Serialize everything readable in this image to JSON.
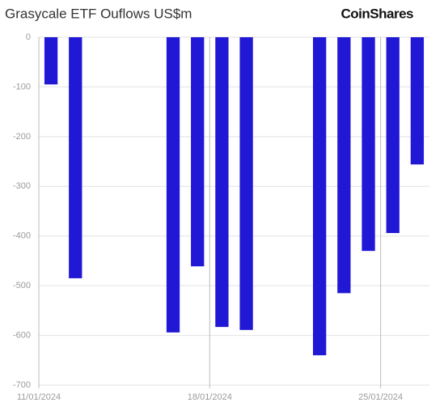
{
  "chart_data": {
    "type": "bar",
    "title": "Grasycale ETF Ouflows US$m",
    "logo": "CoinShares",
    "x": [
      "11/01/2024",
      "12/01/2024",
      "16/01/2024",
      "17/01/2024",
      "18/01/2024",
      "19/01/2024",
      "22/01/2024",
      "23/01/2024",
      "24/01/2024",
      "25/01/2024",
      "26/01/2024"
    ],
    "values": [
      -95,
      -485,
      -594,
      -461,
      -583,
      -589,
      -640,
      -515,
      -430,
      -394,
      -256
    ],
    "color": "#2118d6",
    "xlim": [
      "11/01/2024",
      "27/01/2024"
    ],
    "xticks": [
      "11/01/2024",
      "18/01/2024",
      "25/01/2024"
    ],
    "ylim": [
      -700,
      0
    ],
    "yticks": [
      0,
      -100,
      -200,
      -300,
      -400,
      -500,
      -600,
      -700
    ],
    "grid": true
  }
}
